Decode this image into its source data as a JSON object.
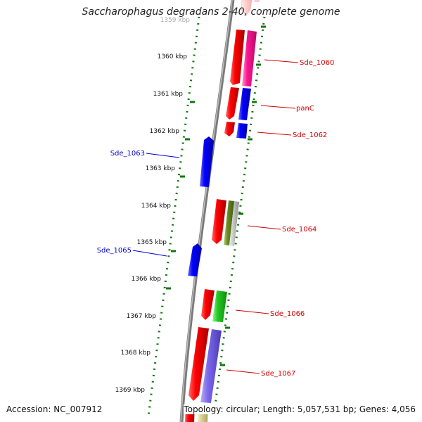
{
  "map": {
    "title": "Saccharophagus degradans 2-40, complete genome",
    "accession": "Accession: NC_007912",
    "summary": "Topology: circular; Length: 5,057,531 bp; Genes: 4,056",
    "top_partial_tick": "1359 kbp",
    "scale_ticks": [
      "1360 kbp",
      "1361 kbp",
      "1362 kbp",
      "1363 kbp",
      "1364 kbp",
      "1365 kbp",
      "1366 kbp",
      "1367 kbp",
      "1368 kbp",
      "1369 kbp"
    ],
    "gene_labels": [
      "Sde_1060",
      "panC",
      "Sde_1062",
      "Sde_1063",
      "Sde_1064",
      "Sde_1065",
      "Sde_1066",
      "Sde_1067"
    ],
    "colors": {
      "forward_label": "#cc0000",
      "reverse_label": "#0000cc",
      "tick_green": "#117711",
      "backbone": "#7a7a7a"
    }
  }
}
